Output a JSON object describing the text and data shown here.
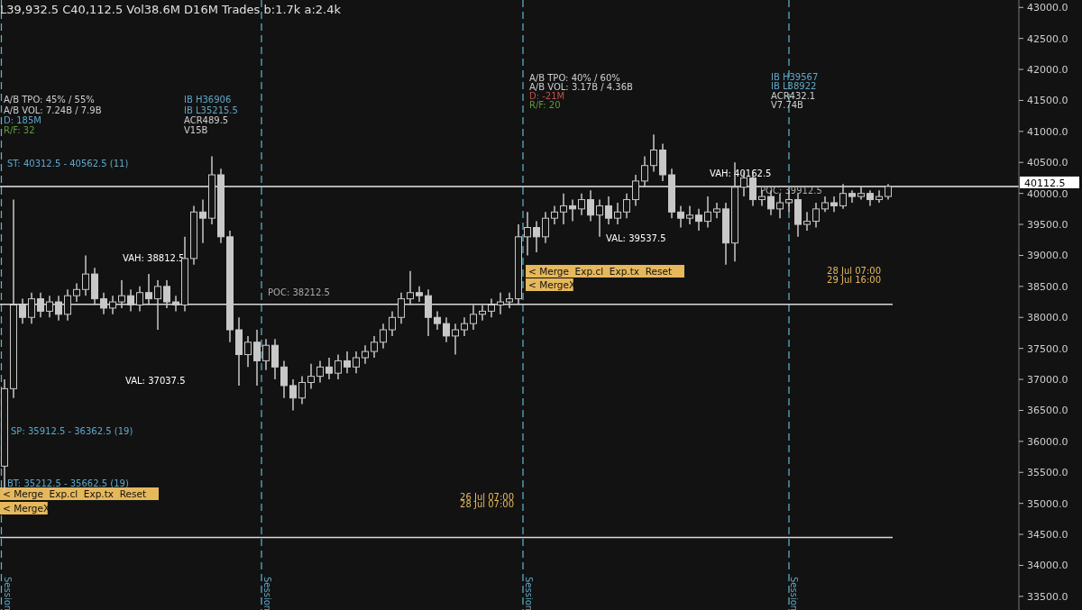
{
  "chart_data": {
    "type": "candlestick",
    "title": "L39,932.5 C40,112.5 Vol38.6M D16M Trades b:1.7k a:2.4k",
    "categories": [
      null,
      null,
      null,
      null,
      null,
      null,
      null,
      null,
      null,
      null,
      null,
      null,
      null,
      null,
      null,
      null,
      null,
      null,
      null,
      null,
      null,
      null,
      null,
      null,
      null,
      null,
      null,
      null,
      null,
      null,
      null,
      null,
      null,
      null,
      null,
      null,
      null,
      null,
      null,
      null,
      null,
      null,
      null,
      null,
      null,
      null,
      null,
      null,
      null,
      null,
      null,
      null,
      null,
      null,
      null,
      null,
      null,
      null,
      null,
      null,
      null,
      null,
      null,
      null,
      null,
      null,
      null,
      null,
      null,
      null,
      null,
      null,
      null,
      null,
      null,
      null,
      null,
      null,
      null,
      null,
      null,
      null,
      null,
      null,
      null,
      null,
      null,
      null,
      null,
      null,
      null,
      null,
      null,
      null,
      null,
      null,
      null,
      null,
      null,
      null,
      null,
      null,
      null,
      null,
      null,
      null,
      null,
      null,
      null,
      null,
      null,
      null,
      null
    ],
    "color": "#c8c8c8",
    "ohlc": [
      [
        35600,
        37000,
        35200,
        36850
      ],
      [
        36850,
        39900,
        36700,
        38200
      ],
      [
        38200,
        38300,
        37900,
        38000
      ],
      [
        38000,
        38400,
        37900,
        38300
      ],
      [
        38300,
        38400,
        38000,
        38100
      ],
      [
        38100,
        38350,
        38000,
        38250
      ],
      [
        38250,
        38350,
        37950,
        38050
      ],
      [
        38050,
        38450,
        37950,
        38350
      ],
      [
        38350,
        38550,
        38250,
        38450
      ],
      [
        38450,
        39000,
        38350,
        38700
      ],
      [
        38700,
        38800,
        38200,
        38300
      ],
      [
        38300,
        38400,
        38050,
        38150
      ],
      [
        38150,
        38350,
        38050,
        38250
      ],
      [
        38250,
        38600,
        38150,
        38350
      ],
      [
        38350,
        38450,
        38100,
        38200
      ],
      [
        38200,
        38500,
        38100,
        38400
      ],
      [
        38400,
        38700,
        38200,
        38300
      ],
      [
        38300,
        38600,
        37800,
        38500
      ],
      [
        38500,
        38600,
        38150,
        38250
      ],
      [
        38250,
        38350,
        38100,
        38200
      ],
      [
        38200,
        39300,
        38100,
        38950
      ],
      [
        38950,
        39800,
        38850,
        39700
      ],
      [
        39700,
        39900,
        39200,
        39600
      ],
      [
        39600,
        40600,
        39500,
        40300
      ],
      [
        40300,
        40400,
        39200,
        39300
      ],
      [
        39300,
        39400,
        37600,
        37800
      ],
      [
        37800,
        38000,
        36900,
        37400
      ],
      [
        37400,
        37700,
        37200,
        37600
      ],
      [
        37600,
        37800,
        36900,
        37300
      ],
      [
        37300,
        37650,
        37150,
        37550
      ],
      [
        37550,
        37650,
        37000,
        37200
      ],
      [
        37200,
        37300,
        36700,
        36900
      ],
      [
        36900,
        37000,
        36500,
        36700
      ],
      [
        36700,
        37050,
        36600,
        36950
      ],
      [
        36950,
        37250,
        36850,
        37050
      ],
      [
        37050,
        37300,
        36950,
        37200
      ],
      [
        37200,
        37350,
        37000,
        37100
      ],
      [
        37100,
        37400,
        37000,
        37300
      ],
      [
        37300,
        37450,
        37100,
        37200
      ],
      [
        37200,
        37450,
        37100,
        37350
      ],
      [
        37350,
        37550,
        37250,
        37450
      ],
      [
        37450,
        37700,
        37350,
        37600
      ],
      [
        37600,
        37900,
        37500,
        37800
      ],
      [
        37800,
        38100,
        37700,
        38000
      ],
      [
        38000,
        38400,
        37900,
        38300
      ],
      [
        38300,
        38750,
        38200,
        38400
      ],
      [
        38400,
        38500,
        38250,
        38350
      ],
      [
        38350,
        38450,
        37700,
        38000
      ],
      [
        38000,
        38100,
        37800,
        37900
      ],
      [
        37900,
        38000,
        37600,
        37700
      ],
      [
        37700,
        37900,
        37400,
        37800
      ],
      [
        37800,
        38000,
        37700,
        37900
      ],
      [
        37900,
        38200,
        37800,
        38050
      ],
      [
        38050,
        38200,
        37950,
        38100
      ],
      [
        38100,
        38300,
        38000,
        38200
      ],
      [
        38200,
        38400,
        38050,
        38250
      ],
      [
        38250,
        38400,
        38150,
        38300
      ],
      [
        38300,
        39500,
        38200,
        39300
      ],
      [
        39300,
        39700,
        39000,
        39450
      ],
      [
        39450,
        39550,
        39050,
        39300
      ],
      [
        39300,
        39700,
        39200,
        39600
      ],
      [
        39600,
        39800,
        39500,
        39700
      ],
      [
        39700,
        40000,
        39500,
        39800
      ],
      [
        39800,
        39900,
        39550,
        39750
      ],
      [
        39750,
        40000,
        39650,
        39900
      ],
      [
        39900,
        40050,
        39550,
        39650
      ],
      [
        39650,
        39900,
        39300,
        39800
      ],
      [
        39800,
        39950,
        39500,
        39600
      ],
      [
        39600,
        39850,
        39500,
        39700
      ],
      [
        39700,
        40000,
        39600,
        39900
      ],
      [
        39900,
        40300,
        39800,
        40200
      ],
      [
        40200,
        40600,
        40100,
        40450
      ],
      [
        40450,
        40950,
        40350,
        40700
      ],
      [
        40700,
        40800,
        40200,
        40300
      ],
      [
        40300,
        40400,
        39600,
        39700
      ],
      [
        39700,
        39800,
        39450,
        39600
      ],
      [
        39600,
        39800,
        39500,
        39650
      ],
      [
        39650,
        39750,
        39400,
        39550
      ],
      [
        39550,
        39950,
        39450,
        39700
      ],
      [
        39700,
        39850,
        39600,
        39750
      ],
      [
        39750,
        39850,
        38850,
        39200
      ],
      [
        39200,
        40500,
        38900,
        40100
      ],
      [
        40100,
        40350,
        39950,
        40250
      ],
      [
        40250,
        40350,
        39800,
        39900
      ],
      [
        39900,
        40050,
        39800,
        39950
      ],
      [
        39950,
        40050,
        39650,
        39750
      ],
      [
        39750,
        40000,
        39600,
        39850
      ],
      [
        39850,
        40050,
        39700,
        39900
      ],
      [
        39900,
        40000,
        39300,
        39500
      ],
      [
        39500,
        39700,
        39400,
        39550
      ],
      [
        39550,
        39850,
        39450,
        39750
      ],
      [
        39750,
        39950,
        39700,
        39850
      ],
      [
        39850,
        39950,
        39700,
        39800
      ],
      [
        39800,
        40150,
        39750,
        40000
      ],
      [
        40000,
        40050,
        39850,
        39950
      ],
      [
        39950,
        40100,
        39900,
        40000
      ],
      [
        40000,
        40050,
        39800,
        39900
      ],
      [
        39900,
        40050,
        39850,
        39950
      ],
      [
        39950,
        40150,
        39900,
        40112.5
      ],
      null,
      null,
      null,
      null,
      null,
      null,
      null,
      null,
      null,
      null,
      null,
      null,
      null,
      null
    ],
    "ylim": [
      33280,
      43120
    ],
    "yticks": [
      {
        "value": 33500,
        "label": "33500.0"
      },
      {
        "value": 34000,
        "label": "34000.0"
      },
      {
        "value": 34500,
        "label": "34500.0"
      },
      {
        "value": 35000,
        "label": "35000.0"
      },
      {
        "value": 35500,
        "label": "35500.0"
      },
      {
        "value": 36000,
        "label": "36000.0"
      },
      {
        "value": 36500,
        "label": "36500.0"
      },
      {
        "value": 37000,
        "label": "37000.0"
      },
      {
        "value": 37500,
        "label": "37500.0"
      },
      {
        "value": 38000,
        "label": "38000.0"
      },
      {
        "value": 38500,
        "label": "38500.0"
      },
      {
        "value": 39000,
        "label": "39000.0"
      },
      {
        "value": 39500,
        "label": "39500.0"
      },
      {
        "value": 40000,
        "label": "40000.0"
      },
      {
        "value": 40500,
        "label": "40500.0"
      },
      {
        "value": 41000,
        "label": "41000.0"
      },
      {
        "value": 41500,
        "label": "41500.0"
      },
      {
        "value": 42000,
        "label": "42000.0"
      },
      {
        "value": 42500,
        "label": "42500.0"
      },
      {
        "value": 43000,
        "label": "43000.0"
      }
    ],
    "ref_lines": [
      {
        "axis": "y",
        "value": 38212.5,
        "color": "#d9d9d9",
        "line_style": "solid"
      },
      {
        "axis": "y",
        "value": 34450,
        "color": "#d9d9d9",
        "line_style": "solid"
      },
      {
        "axis": "y",
        "value": 40112.5,
        "label": "40112.5",
        "color": "#e8e8e8",
        "line_style": "solid"
      }
    ],
    "annotations": [
      "A/B TPO: 45% / 55%",
      "A/B VOL: 7.24B / 7.9B",
      "D: 185M",
      "R/F: 32",
      "IB H36906",
      "IB L35215.5",
      "ACR489.5",
      "V15B",
      "ST: 40312.5 - 40562.5 (11)",
      "SP: 35912.5 - 36362.5 (19)",
      "BT: 35212.5 - 35662.5 (19)",
      "VAH: 38812.5",
      "POC: 38212.5",
      "VAL: 37037.5",
      "26 Jul 07:00",
      "28 Jul 07:00",
      "A/B TPO: 40% / 60%",
      "A/B VOL: 3.17B / 4.36B",
      "D: -21M",
      "R/F: 20",
      "IB H39567",
      "IB L38922",
      "ACR432.1",
      "V7.74B",
      "VAH: 40162.5",
      "POC: 39912.5",
      "VAL: 39537.5",
      "28 Jul 07:00",
      "29 Jul 16:00",
      "< Merge  Exp.cl  Exp.tx  Reset",
      "< MergeX",
      "< Merge  Exp.cl  Exp.tx  Reset",
      "< MergeX",
      "Session",
      "Session",
      "Session",
      "Session"
    ]
  }
}
